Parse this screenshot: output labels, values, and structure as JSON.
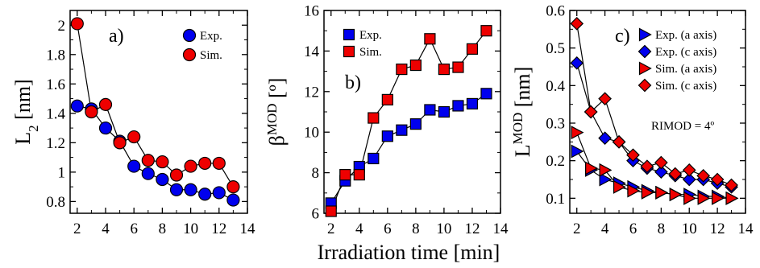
{
  "figure": {
    "shared_xlabel": "Irradiation time [min]"
  },
  "chart_data": [
    {
      "type": "line",
      "panel_label": "a)",
      "ylabel_main": "L",
      "ylabel_sub": "2",
      "ylabel_unit": " [nm]",
      "xlabel": "Irradiation time [min]",
      "xlim": [
        1.5,
        14
      ],
      "ylim": [
        0.72,
        2.1
      ],
      "xticks": [
        "2",
        "4",
        "6",
        "8",
        "10",
        "12",
        "14"
      ],
      "yticks": [
        "0.8",
        "1",
        "1.2",
        "1.4",
        "1.6",
        "1.8",
        "2"
      ],
      "legend_position": "top-right",
      "series": [
        {
          "name": "Exp.",
          "color": "#0000ee",
          "marker": "circle",
          "x": [
            2,
            3,
            4,
            5,
            6,
            7,
            8,
            9,
            10,
            11,
            12,
            13
          ],
          "y": [
            1.45,
            1.43,
            1.3,
            1.21,
            1.04,
            0.99,
            0.95,
            0.88,
            0.88,
            0.85,
            0.86,
            0.81
          ]
        },
        {
          "name": "Sim.",
          "color": "#ee0000",
          "marker": "circle",
          "x": [
            2,
            3,
            4,
            5,
            6,
            7,
            8,
            9,
            10,
            11,
            12,
            13
          ],
          "y": [
            2.01,
            1.41,
            1.46,
            1.2,
            1.24,
            1.08,
            1.07,
            0.98,
            1.04,
            1.06,
            1.06,
            0.9
          ]
        }
      ]
    },
    {
      "type": "line",
      "panel_label": "b)",
      "ylabel_main": "β",
      "ylabel_sup": "MOD",
      "ylabel_unit": " [º]",
      "xlabel": "Irradiation time [min]",
      "xlim": [
        1.5,
        14
      ],
      "ylim": [
        6,
        16
      ],
      "xticks": [
        "2",
        "4",
        "6",
        "8",
        "10",
        "12",
        "14"
      ],
      "yticks": [
        "6",
        "8",
        "10",
        "12",
        "14",
        "16"
      ],
      "legend_position": "top-left",
      "series": [
        {
          "name": "Exp.",
          "color": "#0000ee",
          "marker": "square",
          "x": [
            2,
            3,
            4,
            5,
            6,
            7,
            8,
            9,
            10,
            11,
            12,
            13
          ],
          "y": [
            6.5,
            7.6,
            8.3,
            8.7,
            9.8,
            10.1,
            10.4,
            11.1,
            11.0,
            11.3,
            11.4,
            11.9
          ]
        },
        {
          "name": "Sim.",
          "color": "#ee0000",
          "marker": "square",
          "x": [
            2,
            3,
            4,
            5,
            6,
            7,
            8,
            9,
            10,
            11,
            12,
            13
          ],
          "y": [
            6.1,
            7.9,
            7.9,
            10.7,
            11.6,
            13.1,
            13.3,
            14.6,
            13.1,
            13.2,
            14.1,
            15.0
          ]
        }
      ]
    },
    {
      "type": "line",
      "panel_label": "c)",
      "ylabel_main": "L",
      "ylabel_sup": "MOD",
      "ylabel_unit": " [nm]",
      "xlabel": "Irradiation time [min]",
      "xlim": [
        1.5,
        14
      ],
      "ylim": [
        0.06,
        0.6
      ],
      "xticks": [
        "2",
        "4",
        "6",
        "8",
        "10",
        "12",
        "14"
      ],
      "yticks": [
        "0.1",
        "0.2",
        "0.3",
        "0.4",
        "0.5",
        "0.6"
      ],
      "legend_position": "top-right",
      "annotation": "RIMOD = 4º",
      "series": [
        {
          "name": "Exp. (a axis)",
          "color": "#0000ee",
          "marker": "triangle-right",
          "x": [
            2,
            3,
            4,
            5,
            6,
            7,
            8,
            9,
            10,
            11,
            12,
            13
          ],
          "y": [
            0.225,
            0.175,
            0.15,
            0.14,
            0.13,
            0.12,
            0.115,
            0.11,
            0.11,
            0.105,
            0.105,
            0.1
          ]
        },
        {
          "name": "Exp. (c axis)",
          "color": "#0000ee",
          "marker": "diamond",
          "x": [
            2,
            3,
            4,
            5,
            6,
            7,
            8,
            9,
            10,
            11,
            12,
            13
          ],
          "y": [
            0.46,
            0.33,
            0.26,
            0.25,
            0.2,
            0.18,
            0.17,
            0.16,
            0.15,
            0.15,
            0.14,
            0.13
          ]
        },
        {
          "name": "Sim. (a axis)",
          "color": "#ee0000",
          "marker": "triangle-right",
          "x": [
            2,
            3,
            4,
            5,
            6,
            7,
            8,
            9,
            10,
            11,
            12,
            13
          ],
          "y": [
            0.275,
            0.18,
            0.175,
            0.13,
            0.12,
            0.115,
            0.115,
            0.11,
            0.1,
            0.1,
            0.1,
            0.1
          ]
        },
        {
          "name": "Sim. (c axis)",
          "color": "#ee0000",
          "marker": "diamond",
          "x": [
            2,
            3,
            4,
            5,
            6,
            7,
            8,
            9,
            10,
            11,
            12,
            13
          ],
          "y": [
            0.565,
            0.33,
            0.365,
            0.25,
            0.215,
            0.185,
            0.195,
            0.165,
            0.175,
            0.16,
            0.15,
            0.135
          ]
        }
      ]
    }
  ]
}
